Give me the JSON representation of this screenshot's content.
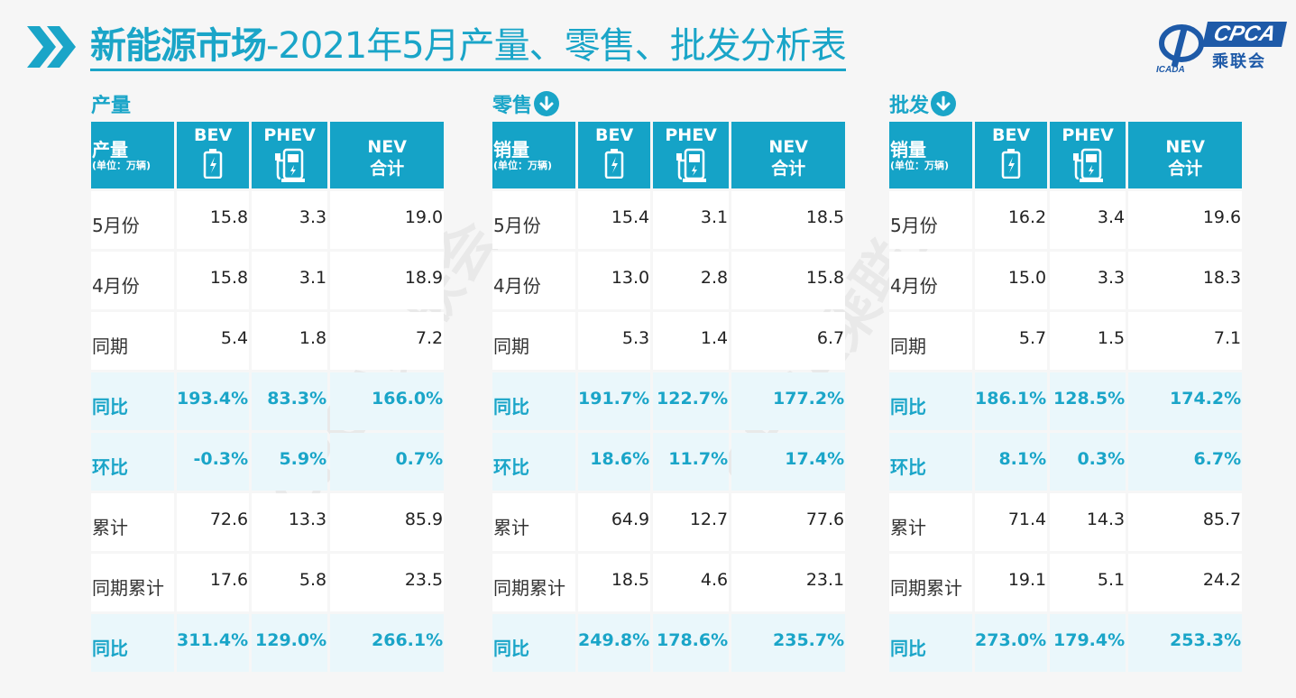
{
  "title": {
    "bold": "新能源市场",
    "rest": "-2021年5月产量、零售、批发分析表"
  },
  "logo": {
    "brand": "CPCA",
    "cn": "乘联会",
    "small": "ICADA",
    "watermark": "CPCA乘联会"
  },
  "columns": {
    "bev": "BEV",
    "phev": "PHEV",
    "nev_line1": "NEV",
    "nev_line2": "合计"
  },
  "unit": "(单位：万辆)",
  "row_labels": [
    "5月份",
    "4月份",
    "同期",
    "同比",
    "环比",
    "累计",
    "同期累计",
    "同比"
  ],
  "highlight_rows": [
    3,
    4,
    7
  ],
  "colors": {
    "accent": "#1aa5c8",
    "header_bg": "#15a3c7",
    "highlight_bg": "#eaf7fb",
    "logo_blue": "#1e5aa8"
  },
  "panels": [
    {
      "label": "产量",
      "has_arrow": false,
      "metric": "产量",
      "rows": [
        [
          "15.8",
          "3.3",
          "19.0"
        ],
        [
          "15.8",
          "3.1",
          "18.9"
        ],
        [
          "5.4",
          "1.8",
          "7.2"
        ],
        [
          "193.4%",
          "83.3%",
          "166.0%"
        ],
        [
          "-0.3%",
          "5.9%",
          "0.7%"
        ],
        [
          "72.6",
          "13.3",
          "85.9"
        ],
        [
          "17.6",
          "5.8",
          "23.5"
        ],
        [
          "311.4%",
          "129.0%",
          "266.1%"
        ]
      ]
    },
    {
      "label": "零售",
      "has_arrow": true,
      "metric": "销量",
      "rows": [
        [
          "15.4",
          "3.1",
          "18.5"
        ],
        [
          "13.0",
          "2.8",
          "15.8"
        ],
        [
          "5.3",
          "1.4",
          "6.7"
        ],
        [
          "191.7%",
          "122.7%",
          "177.2%"
        ],
        [
          "18.6%",
          "11.7%",
          "17.4%"
        ],
        [
          "64.9",
          "12.7",
          "77.6"
        ],
        [
          "18.5",
          "4.6",
          "23.1"
        ],
        [
          "249.8%",
          "178.6%",
          "235.7%"
        ]
      ]
    },
    {
      "label": "批发",
      "has_arrow": true,
      "metric": "销量",
      "rows": [
        [
          "16.2",
          "3.4",
          "19.6"
        ],
        [
          "15.0",
          "3.3",
          "18.3"
        ],
        [
          "5.7",
          "1.5",
          "7.1"
        ],
        [
          "186.1%",
          "128.5%",
          "174.2%"
        ],
        [
          "8.1%",
          "0.3%",
          "6.7%"
        ],
        [
          "71.4",
          "14.3",
          "85.7"
        ],
        [
          "19.1",
          "5.1",
          "24.2"
        ],
        [
          "273.0%",
          "179.4%",
          "253.3%"
        ]
      ]
    }
  ]
}
